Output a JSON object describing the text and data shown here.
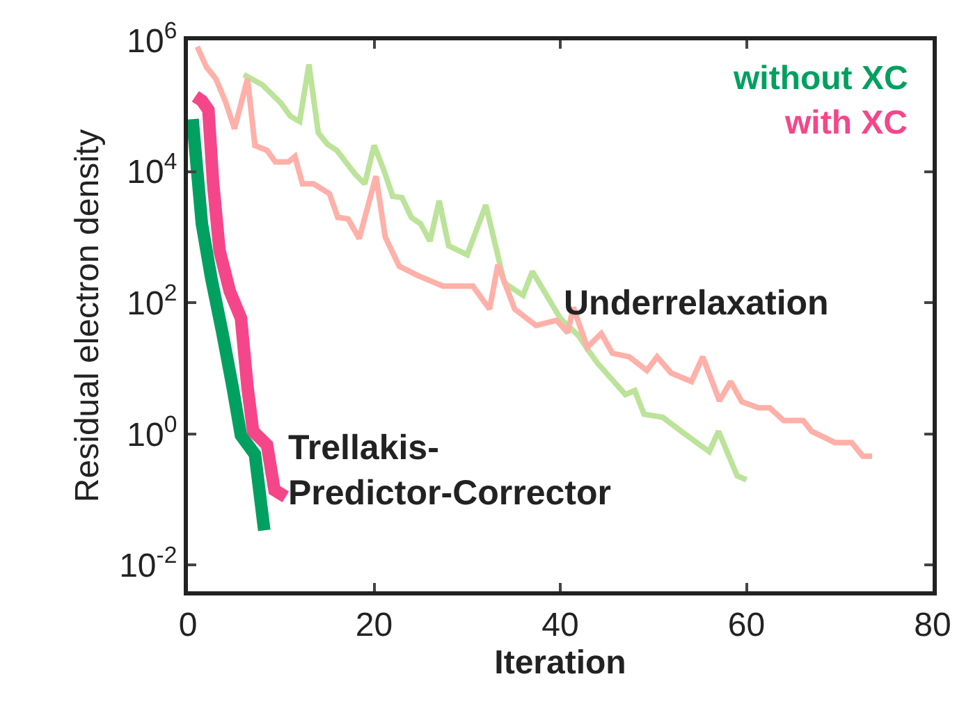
{
  "chart_data": {
    "type": "line",
    "xlabel": "Iteration",
    "ylabel": "Residual electron density",
    "log": "y",
    "xlim": [
      0,
      80
    ],
    "xticks": [
      0,
      20,
      40,
      60,
      80
    ],
    "ylim": [
      0.004,
      1000000
    ],
    "yticks": [
      {
        "value": 0.01,
        "label": "10$^{-2}$"
      },
      {
        "value": 1,
        "label": "10$^{0}$"
      },
      {
        "value": 100,
        "label": "10$^{2}$"
      },
      {
        "value": 10000,
        "label": "10$^{4}$"
      },
      {
        "value": 1000000,
        "label": "10$^{6}$"
      }
    ],
    "legend": false,
    "marker": "none",
    "annotations": [
      {
        "text": "Underrelaxation",
        "x": 40,
        "y": 100
      },
      "Trellakis-\nPredictor-Corrector"
    ],
    "series": [
      {
        "color": "#bce39a",
        "x": [
          6,
          8,
          10,
          11,
          12,
          13,
          14,
          15,
          16,
          18,
          19,
          20,
          21,
          22,
          23,
          24,
          25,
          26,
          27,
          28,
          30,
          32,
          34,
          36,
          37,
          40,
          42,
          43,
          44,
          47,
          48,
          49,
          51,
          53,
          55,
          56,
          57,
          59,
          60
        ],
        "values": [
          300000,
          210000,
          110000,
          70000,
          58000,
          430000,
          39000,
          26000,
          21000,
          9000,
          6500,
          25000,
          11000,
          4200,
          4000,
          2000,
          1600,
          870,
          3600,
          740,
          540,
          3100,
          200,
          130,
          300,
          58,
          31,
          19,
          12,
          4,
          4.6,
          2,
          1.8,
          1.1,
          0.68,
          0.54,
          1.1,
          0.23,
          0.2
        ]
      },
      {
        "color": "#ffb0a8",
        "x": [
          1,
          2,
          3,
          4,
          5,
          6.4,
          7.2,
          8.5,
          9.4,
          10.8,
          11.5,
          12.3,
          13.5,
          15.2,
          16.1,
          17.2,
          18.4,
          20.2,
          21.2,
          22.7,
          24.7,
          26.6,
          27.4,
          30.6,
          32.4,
          33.3,
          35.1,
          37.4,
          39.6,
          40.8,
          41.4,
          42.9,
          44.4,
          45.6,
          47.4,
          49.3,
          50.4,
          51.9,
          54.1,
          55.3,
          57.1,
          58.3,
          59.5,
          61.3,
          62.5,
          64,
          66.1,
          67,
          69.5,
          71.3,
          72.5,
          73.5
        ],
        "values": [
          800000,
          390000,
          260000,
          120000,
          45000,
          260000,
          25000,
          21000,
          14000,
          14000,
          17000,
          6500,
          6500,
          4600,
          2000,
          1900,
          950,
          8500,
          1000,
          360,
          260,
          200,
          180,
          180,
          80,
          380,
          80,
          45,
          54,
          35,
          85,
          21,
          34,
          17,
          15,
          9.3,
          15,
          8.5,
          6.3,
          15,
          3.2,
          6.3,
          3.1,
          2.5,
          2.5,
          1.6,
          1.6,
          1.1,
          0.74,
          0.74,
          0.46,
          0.46
        ]
      },
      {
        "name": "without XC",
        "color": "#00a060",
        "x": [
          0.5,
          1.5,
          2.5,
          3.7,
          4.8,
          5.7,
          7.2,
          8.2
        ],
        "values": [
          63000,
          1600,
          240,
          35,
          5.2,
          0.95,
          0.49,
          0.034
        ]
      },
      {
        "name": "with XC",
        "color": "#f5468a",
        "x": [
          0.8,
          1.5,
          2.2,
          2.7,
          3.4,
          4.5,
          5.7,
          6.4,
          7,
          8.5,
          9.3,
          10.5
        ],
        "values": [
          140000,
          120000,
          87000,
          6800,
          620,
          150,
          58,
          5.2,
          1.1,
          0.68,
          0.14,
          0.11
        ]
      }
    ]
  }
}
